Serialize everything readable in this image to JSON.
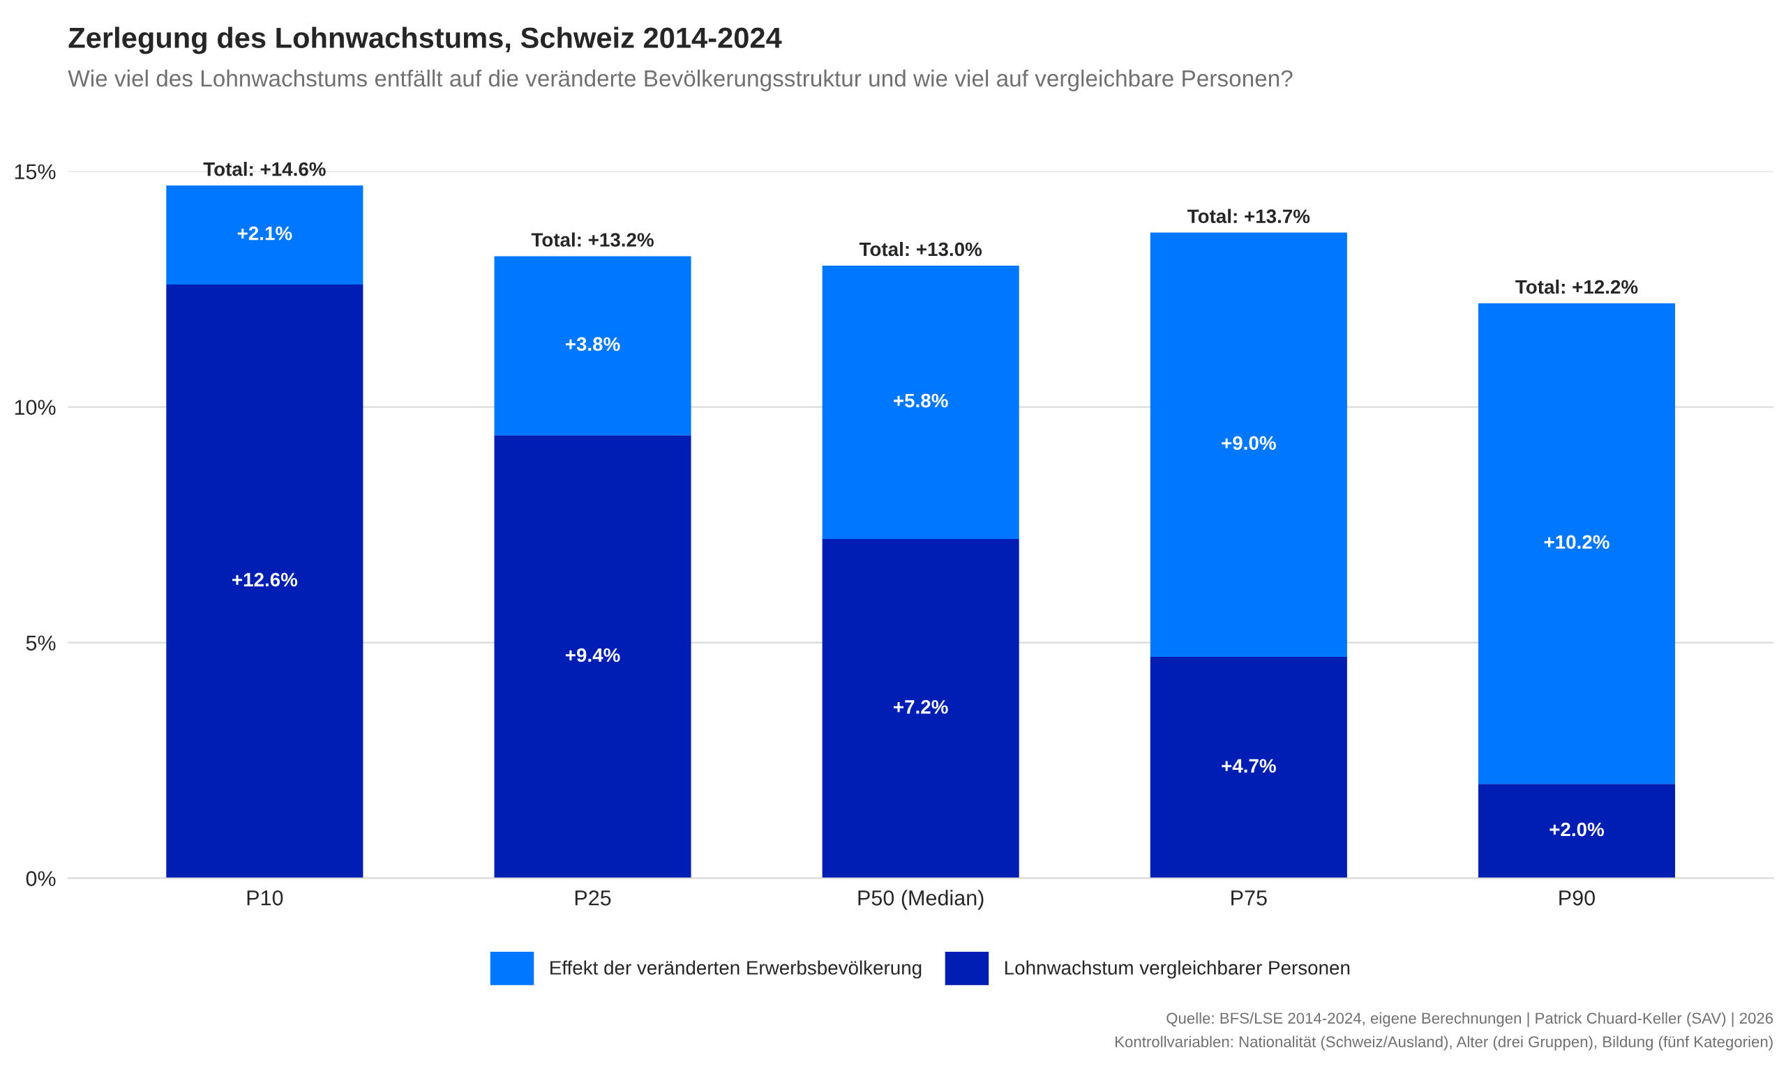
{
  "chart_data": {
    "type": "bar",
    "title": "Zerlegung des Lohnwachstums, Schweiz 2014-2024",
    "subtitle": "Wie viel des Lohnwachstums entfällt auf die veränderte Bevölkerungsstruktur und wie viel auf vergleichbare Personen?",
    "categories": [
      "P10",
      "P25",
      "P50 (Median)",
      "P75",
      "P90"
    ],
    "stacked": true,
    "series": [
      {
        "name": "Lohnwachstum vergleichbarer Personen",
        "color": "#001eb4",
        "values": [
          12.6,
          9.4,
          7.2,
          4.7,
          2.0
        ],
        "value_labels": [
          "+12.6%",
          "+9.4%",
          "+7.2%",
          "+4.7%",
          "+2.0%"
        ]
      },
      {
        "name": "Effekt der veränderten Erwerbsbevölkerung",
        "color": "#0077ff",
        "values": [
          2.1,
          3.8,
          5.8,
          9.0,
          10.2
        ],
        "value_labels": [
          "+2.1%",
          "+3.8%",
          "+5.8%",
          "+9.0%",
          "+10.2%"
        ]
      }
    ],
    "totals": [
      "Total: +14.6%",
      "Total: +13.2%",
      "Total: +13.0%",
      "Total: +13.7%",
      "Total: +12.2%"
    ],
    "ylim": [
      0,
      15
    ],
    "yticks": [
      {
        "value": 0,
        "label": "0%"
      },
      {
        "value": 5,
        "label": "5%"
      },
      {
        "value": 10,
        "label": "10%"
      },
      {
        "value": 15,
        "label": "15%"
      }
    ],
    "grid": "y",
    "legend": "bottom",
    "annotations": [
      "Quelle: BFS/LSE 2014-2024, eigene Berechnungen | Patrick Chuard-Keller (SAV) | 2026",
      "Kontrollvariablen: Nationalität (Schweiz/Ausland), Alter (drei Gruppen), Bildung (fünf Kategorien)"
    ]
  }
}
